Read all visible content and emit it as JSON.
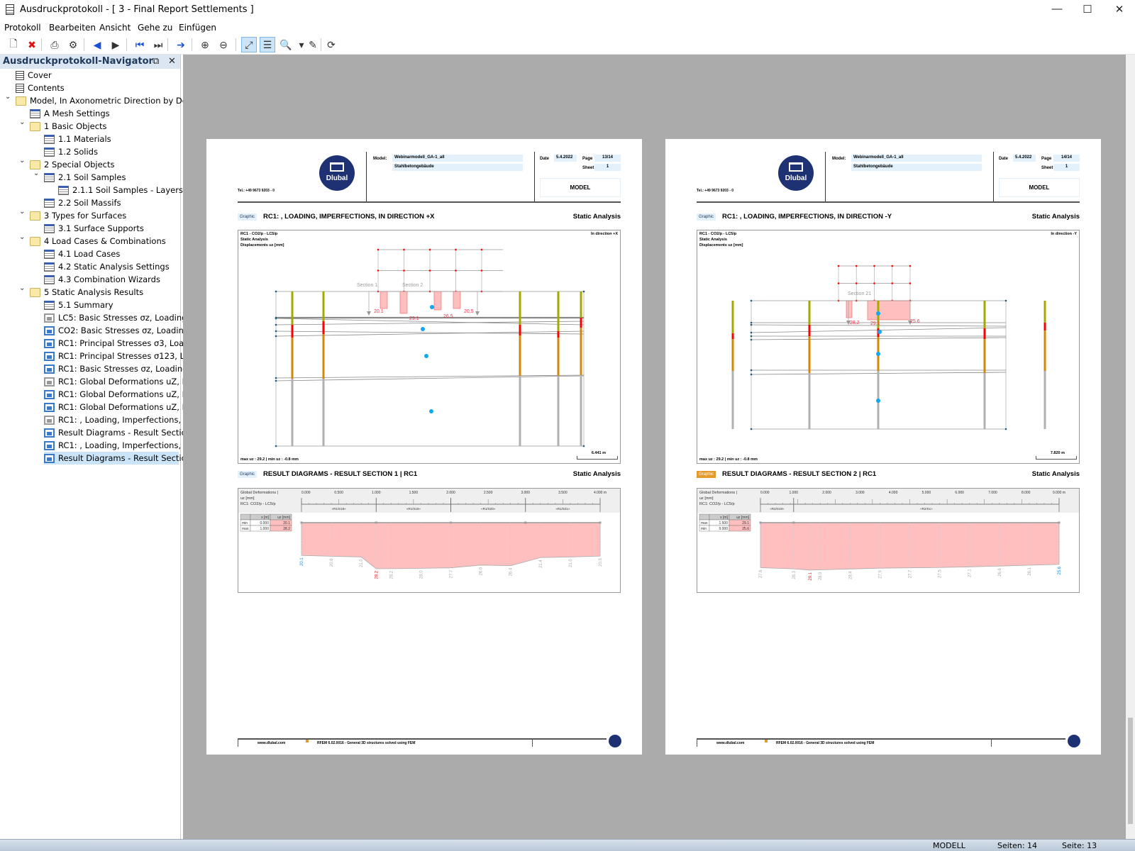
{
  "window": {
    "title": "Ausdruckprotokoll - [ 3 - Final Report Settlements ]",
    "minimize": "—",
    "maximize": "☐",
    "close": "✕"
  },
  "menu": [
    "Protokoll",
    "Bearbeiten",
    "Ansicht",
    "Gehe zu",
    "Einfügen"
  ],
  "toolbar": [
    {
      "icon": "open-icon",
      "glyph": "🗋",
      "active": false
    },
    {
      "icon": "delete-icon",
      "glyph": "✖",
      "active": false
    },
    {
      "icon": "print-icon",
      "glyph": "⎙",
      "active": false
    },
    {
      "icon": "print-settings-icon",
      "glyph": "⚙",
      "active": false
    },
    {
      "icon": "previous-icon",
      "glyph": "◀",
      "active": false
    },
    {
      "icon": "next-icon",
      "glyph": "▶",
      "active": false
    },
    {
      "icon": "first-page-icon",
      "glyph": "⏮",
      "active": false
    },
    {
      "icon": "last-page-icon",
      "glyph": "⏭",
      "active": false
    },
    {
      "icon": "go-to-page-icon",
      "glyph": "➔",
      "active": false
    },
    {
      "icon": "zoom-in-icon",
      "glyph": "⊕",
      "active": false
    },
    {
      "icon": "zoom-out-icon",
      "glyph": "⊖",
      "active": false
    },
    {
      "icon": "fit-page-icon",
      "glyph": "⤢",
      "active": true
    },
    {
      "icon": "select-icon",
      "glyph": "☰",
      "active": true
    },
    {
      "icon": "preview-icon",
      "glyph": "🔍",
      "active": false
    },
    {
      "icon": "dropdown-icon",
      "glyph": "▾",
      "active": false
    },
    {
      "icon": "edit-icon",
      "glyph": "✎",
      "active": false
    },
    {
      "icon": "refresh-icon",
      "glyph": "⟳",
      "active": false
    }
  ],
  "navigator": {
    "title": "Ausdruckprotokoll-Navigator",
    "selected": 30,
    "items": [
      {
        "label": "Cover",
        "level": 0,
        "icon": "doc"
      },
      {
        "label": "Contents",
        "level": 0,
        "icon": "doc"
      },
      {
        "label": "Model, In Axonometric Direction by Default",
        "level": 0,
        "icon": "folder",
        "expanded": true
      },
      {
        "label": "A Mesh Settings",
        "level": 1,
        "icon": "table"
      },
      {
        "label": "1 Basic Objects",
        "level": 1,
        "icon": "folder",
        "expanded": true
      },
      {
        "label": "1.1 Materials",
        "level": 2,
        "icon": "table"
      },
      {
        "label": "1.2 Solids",
        "level": 2,
        "icon": "table"
      },
      {
        "label": "2 Special Objects",
        "level": 1,
        "icon": "folder",
        "expanded": true
      },
      {
        "label": "2.1 Soil Samples",
        "level": 2,
        "icon": "table",
        "expanded": true
      },
      {
        "label": "2.1.1 Soil Samples - Layers",
        "level": 3,
        "icon": "table"
      },
      {
        "label": "2.2 Soil Massifs",
        "level": 2,
        "icon": "table"
      },
      {
        "label": "3 Types for Surfaces",
        "level": 1,
        "icon": "folder",
        "expanded": true
      },
      {
        "label": "3.1 Surface Supports",
        "level": 2,
        "icon": "table"
      },
      {
        "label": "4 Load Cases & Combinations",
        "level": 1,
        "icon": "folder",
        "expanded": true
      },
      {
        "label": "4.1 Load Cases",
        "level": 2,
        "icon": "table"
      },
      {
        "label": "4.2 Static Analysis Settings",
        "level": 2,
        "icon": "table"
      },
      {
        "label": "4.3 Combination Wizards",
        "level": 2,
        "icon": "table"
      },
      {
        "label": "5 Static Analysis Results",
        "level": 1,
        "icon": "folder",
        "expanded": true
      },
      {
        "label": "5.1 Summary",
        "level": 2,
        "icon": "table"
      },
      {
        "label": "LC5: Basic Stresses σz, Loading, I…",
        "level": 2,
        "icon": "image-gray"
      },
      {
        "label": "CO2: Basic Stresses σz, Loading, …",
        "level": 2,
        "icon": "image"
      },
      {
        "label": "RC1: Principal Stresses σ3, Loadin…",
        "level": 2,
        "icon": "image"
      },
      {
        "label": "RC1: Principal Stresses σ123, Loa…",
        "level": 2,
        "icon": "image"
      },
      {
        "label": "RC1: Basic Stresses σz, Loading, …",
        "level": 2,
        "icon": "image"
      },
      {
        "label": "RC1: Global Deformations uZ, Loa…",
        "level": 2,
        "icon": "image-gray"
      },
      {
        "label": "RC1: Global Deformations uZ, Loa…",
        "level": 2,
        "icon": "image"
      },
      {
        "label": "RC1: Global Deformations uZ, Loa…",
        "level": 2,
        "icon": "image"
      },
      {
        "label": "RC1: , Loading, Imperfections, I…",
        "level": 2,
        "icon": "image-gray"
      },
      {
        "label": "Result Diagrams - Result Section …",
        "level": 2,
        "icon": "image"
      },
      {
        "label": "RC1: , Loading, Imperfections, I…",
        "level": 2,
        "icon": "image"
      },
      {
        "label": "Result Diagrams - Result Section …",
        "level": 2,
        "icon": "image"
      }
    ]
  },
  "pages": [
    {
      "header": {
        "tel": "Tel.: +49 9673 9203 - 0",
        "logo": "Dlubal",
        "model_label": "Model:",
        "model": "Webinarmodell_GA-1_all",
        "description": "Stahlbetongebäude",
        "date_label": "Date",
        "date": "5.4.2022",
        "page_label": "Page",
        "page": "13/14",
        "sheet_label": "Sheet",
        "sheet": "1",
        "section": "MODEL"
      },
      "graphic": {
        "badge": "Graphic",
        "title": "RC1: , LOADING, IMPERFECTIONS, IN DIRECTION +X",
        "category": "Static Analysis",
        "info": [
          "RC1 - CO2/p - LC5/p",
          "Static Analysis",
          "Displacements uz [mm]"
        ],
        "direction": "In direction +X",
        "summary": "max uz : 29.2 | min uz : -0.8 mm",
        "scale": "6.441 m",
        "sections": [
          "Section 1",
          "Section 2"
        ],
        "values": [
          "20.1",
          "29.1",
          "26.5",
          "20.5"
        ]
      },
      "diagram": {
        "badge": "Graphic",
        "badge_highlight": false,
        "title": "RESULT DIAGRAMS - RESULT SECTION 1 | RC1",
        "category": "Static Analysis",
        "info": [
          "Global Deformations |",
          "uz [mm]",
          "RC1: CO2/p - LC5/p"
        ],
        "table": {
          "headers": [
            "",
            "x [m]",
            "uz [mm]"
          ],
          "rows": [
            [
              "min",
              "0.000",
              "20.1"
            ],
            [
              "max",
              "1.000",
              "28.2"
            ]
          ]
        },
        "axis": {
          "max": 4,
          "ticks": [
            "0.000",
            "0.500",
            "1.000",
            "1.500",
            "2.000",
            "2.500",
            "3.000",
            "3.500",
            "4.000 m"
          ],
          "tick_values": [
            0,
            0.5,
            1,
            1.5,
            2,
            2.5,
            3,
            3.5,
            4
          ]
        },
        "members": [
          {
            "label": "«R1/S18»",
            "from": 0,
            "to": 1
          },
          {
            "label": "«R1/S19»",
            "from": 1,
            "to": 2
          },
          {
            "label": "«R1/S20»",
            "from": 2,
            "to": 3
          },
          {
            "label": "«R1/S21»",
            "from": 3,
            "to": 4
          }
        ],
        "values": [
          {
            "x": 0,
            "v": 20.1,
            "kind": "min"
          },
          {
            "x": 0.4,
            "v": 20.6
          },
          {
            "x": 0.8,
            "v": 21.0
          },
          {
            "x": 1.0,
            "v": 28.2,
            "kind": "max"
          },
          {
            "x": 1.2,
            "v": 28.2
          },
          {
            "x": 1.6,
            "v": 28.0
          },
          {
            "x": 2.0,
            "v": 27.7
          },
          {
            "x": 2.4,
            "v": 26.0
          },
          {
            "x": 2.8,
            "v": 26.4
          },
          {
            "x": 3.2,
            "v": 21.4
          },
          {
            "x": 3.6,
            "v": 21.0
          },
          {
            "x": 4.0,
            "v": 20.5
          }
        ]
      },
      "footer": {
        "url": "www.dlubal.com",
        "text": "RFEM 6.02.0016 - General 3D structures solved using FEM"
      }
    },
    {
      "header": {
        "tel": "Tel.: +49 9673 9203 - 0",
        "logo": "Dlubal",
        "model_label": "Model:",
        "model": "Webinarmodell_GA-1_all",
        "description": "Stahlbetongebäude",
        "date_label": "Date",
        "date": "5.4.2022",
        "page_label": "Page",
        "page": "14/14",
        "sheet_label": "Sheet",
        "sheet": "1",
        "section": "MODEL"
      },
      "graphic": {
        "badge": "Graphic",
        "title": "RC1: , LOADING, IMPERFECTIONS, IN DIRECTION -Y",
        "category": "Static Analysis",
        "info": [
          "RC1 - CO2/p - LC5/p",
          "Static Analysis",
          "Displacements uz [mm]"
        ],
        "direction": "In direction -Y",
        "summary": "max uz : 29.2 | min uz : -0.8 mm",
        "scale": "7.820 m",
        "sections": [
          "Section 21"
        ],
        "values": [
          "28.2",
          "29.1",
          "25.6"
        ]
      },
      "diagram": {
        "badge": "Graphic",
        "badge_highlight": true,
        "title": "RESULT DIAGRAMS - RESULT SECTION 2 | RC1",
        "category": "Static Analysis",
        "info": [
          "Global Deformations |",
          "uz [mm]",
          "RC1: CO2/p - LC5/p"
        ],
        "table": {
          "headers": [
            "",
            "x [m]",
            "uz [mm]"
          ],
          "rows": [
            [
              "max",
              "1.500",
              "29.1"
            ],
            [
              "min",
              "9.000",
              "25.6"
            ]
          ]
        },
        "axis": {
          "max": 9,
          "ticks": [
            "0.000",
            "1.000",
            "2.000",
            "3.000",
            "4.000",
            "5.000",
            "6.000",
            "7.000",
            "8.000",
            "9.000 m"
          ],
          "tick_values": [
            0,
            1,
            2,
            3,
            4,
            5,
            6,
            7,
            8,
            9
          ]
        },
        "members": [
          {
            "label": "«R2/S19»",
            "from": 0,
            "to": 1
          },
          {
            "label": "«R2/S1»",
            "from": 1,
            "to": 9
          }
        ],
        "values": [
          {
            "x": 0,
            "v": 27.6
          },
          {
            "x": 1.0,
            "v": 28.3
          },
          {
            "x": 1.5,
            "v": 29.1,
            "kind": "max"
          },
          {
            "x": 1.8,
            "v": 28.9
          },
          {
            "x": 2.7,
            "v": 28.4
          },
          {
            "x": 3.6,
            "v": 27.9
          },
          {
            "x": 4.5,
            "v": 27.7
          },
          {
            "x": 5.4,
            "v": 27.5
          },
          {
            "x": 6.3,
            "v": 27.1
          },
          {
            "x": 7.2,
            "v": 26.6
          },
          {
            "x": 8.1,
            "v": 26.1
          },
          {
            "x": 9.0,
            "v": 25.6,
            "kind": "min"
          }
        ]
      },
      "footer": {
        "url": "www.dlubal.com",
        "text": "RFEM 6.02.0016 - General 3D structures solved using FEM"
      }
    }
  ],
  "status": {
    "mode": "MODELL",
    "pages": "Seiten: 14",
    "page": "Seite: 13"
  },
  "colors": {
    "fill": "#ffbfbf",
    "max": "#e8202a",
    "min": "#2a8ad0",
    "olive": "#a6a800",
    "orange": "#d4870a",
    "red": "#ff0000",
    "brand": "#1d3173"
  }
}
